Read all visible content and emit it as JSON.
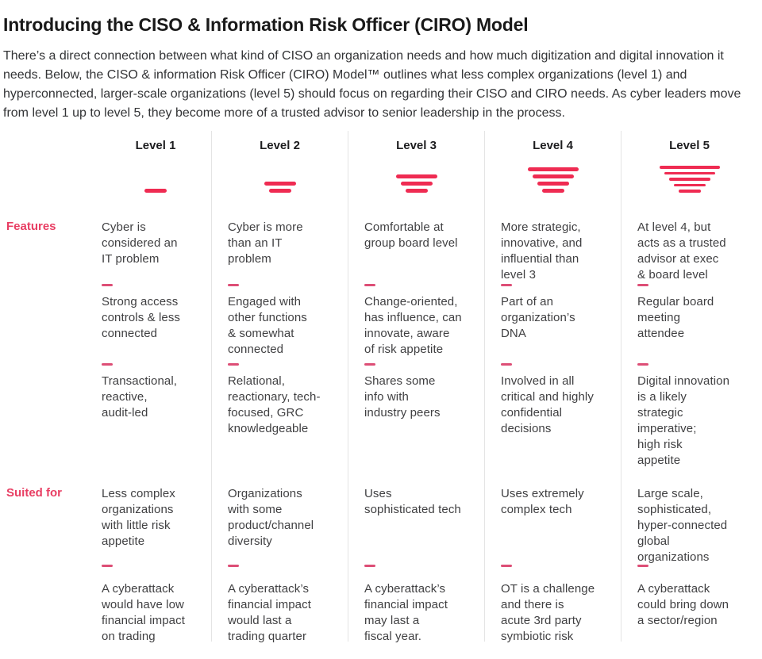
{
  "page": {
    "title": "Introducing the CISO & Information Risk Officer (CIRO) Model",
    "intro": "There’s a direct connection between what kind of CISO an organization needs and how much digitization and digital innovation it needs. Below, the CISO & information Risk Officer (CIRO) Model™ outlines what less complex organizations (level 1) and hyperconnected, larger-scale organizations (level 5) should focus on regarding their CISO and CIRO needs. As cyber leaders move from level 1 up to level 5, they become more of a trusted advisor to senior leadership in the process."
  },
  "row_labels": {
    "features": "Features",
    "suited_for": "Suited for"
  },
  "colors": {
    "accent_red": "#ef2b52",
    "label_pink": "#e83e63",
    "dash_pink": "#dd4e76",
    "divider_gray": "#e4e4e4",
    "text_dark": "#404042"
  },
  "levels": [
    {
      "label": "Level 1",
      "funnel_bars": 1,
      "features": [
        "Cyber is\nconsidered an\nIT problem",
        "Strong access\ncontrols & less\nconnected",
        "Transactional,\nreactive,\naudit-led"
      ],
      "suited_for": [
        "Less complex\norganizations\nwith little risk\nappetite",
        "A cyberattack\nwould have low\nfinancial impact\non trading"
      ]
    },
    {
      "label": "Level 2",
      "funnel_bars": 2,
      "features": [
        "Cyber is more\nthan an IT\nproblem",
        "Engaged with\nother functions\n& somewhat\nconnected",
        "Relational,\nreactionary, tech-\nfocused, GRC\nknowledgeable"
      ],
      "suited_for": [
        "Organizations\nwith some\nproduct/channel\ndiversity",
        "A cyberattack’s\nfinancial impact\nwould last a\ntrading quarter"
      ]
    },
    {
      "label": "Level 3",
      "funnel_bars": 3,
      "features": [
        "Comfortable at\ngroup board level",
        "Change-oriented,\nhas influence, can\ninnovate, aware\nof risk appetite",
        "Shares some\ninfo with\nindustry peers"
      ],
      "suited_for": [
        "Uses\nsophisticated tech",
        "A cyberattack’s\nfinancial impact\nmay last a\nfiscal year."
      ]
    },
    {
      "label": "Level 4",
      "funnel_bars": 4,
      "features": [
        "More strategic,\ninnovative, and\ninfluential than\nlevel 3",
        "Part of an\norganization’s\nDNA",
        "Involved in all\ncritical and highly\nconfidential\ndecisions"
      ],
      "suited_for": [
        "Uses extremely\ncomplex tech",
        "OT is a challenge\nand there is\nacute 3rd party\nsymbiotic risk"
      ]
    },
    {
      "label": "Level 5",
      "funnel_bars": 5,
      "features": [
        "At level 4, but\nacts as a trusted\nadvisor at exec\n& board level",
        "Regular board\nmeeting\nattendee",
        "Digital innovation\nis a likely\nstrategic\nimperative;\nhigh risk\nappetite"
      ],
      "suited_for": [
        "Large scale,\nsophisticated,\nhyper-connected\nglobal\norganizations",
        "A cyberattack\ncould bring down\na sector/region"
      ]
    }
  ]
}
